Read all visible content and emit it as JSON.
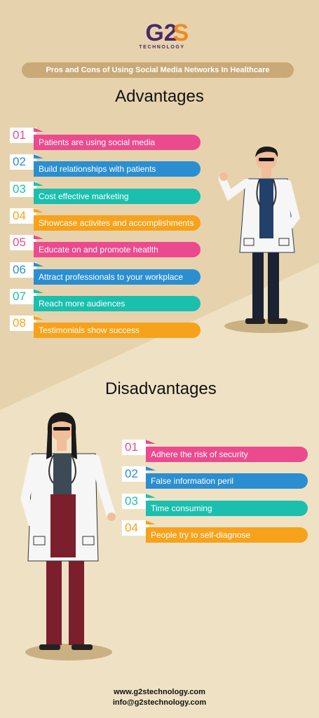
{
  "colors": {
    "pink": "#ec4a8e",
    "blue": "#2a8ed1",
    "teal": "#1bbfae",
    "orange": "#f7a21b",
    "accent": "#4a2a6a",
    "orange_brand": "#f28a1c",
    "pill": "#c9a977"
  },
  "brand": {
    "logo_text": "G2S",
    "tagline": "TECHNOLOGY"
  },
  "header": {
    "title": "Pros and Cons of Using Social Media Networks In Healthcare"
  },
  "advantages": {
    "heading": "Advantages",
    "items": [
      {
        "num": "01",
        "text": "Patients are using social media",
        "color": "#ec4a8e"
      },
      {
        "num": "02",
        "text": "Build relationships with patients",
        "color": "#2a8ed1"
      },
      {
        "num": "03",
        "text": "Cost effective marketing",
        "color": "#1bbfae"
      },
      {
        "num": "04",
        "text": "Showcase activites and accomplishments",
        "color": "#f7a21b"
      },
      {
        "num": "05",
        "text": "Educate on and promote heatlth",
        "color": "#ec4a8e"
      },
      {
        "num": "06",
        "text": "Attract professionals to your workplace",
        "color": "#2a8ed1"
      },
      {
        "num": "07",
        "text": "Reach more audiences",
        "color": "#1bbfae"
      },
      {
        "num": "08",
        "text": "Testimonials show success",
        "color": "#f7a21b"
      }
    ]
  },
  "disadvantages": {
    "heading": "Disadvantages",
    "items": [
      {
        "num": "01",
        "text": "Adhere the risk of security",
        "color": "#ec4a8e"
      },
      {
        "num": "02",
        "text": "False information peril",
        "color": "#2a8ed1"
      },
      {
        "num": "03",
        "text": "Time consuming",
        "color": "#1bbfae"
      },
      {
        "num": "04",
        "text": "People try to self-diagnose",
        "color": "#f7a21b"
      }
    ]
  },
  "footer": {
    "website": "www.g2stechnology.com",
    "email": "info@g2stechnology.com"
  }
}
